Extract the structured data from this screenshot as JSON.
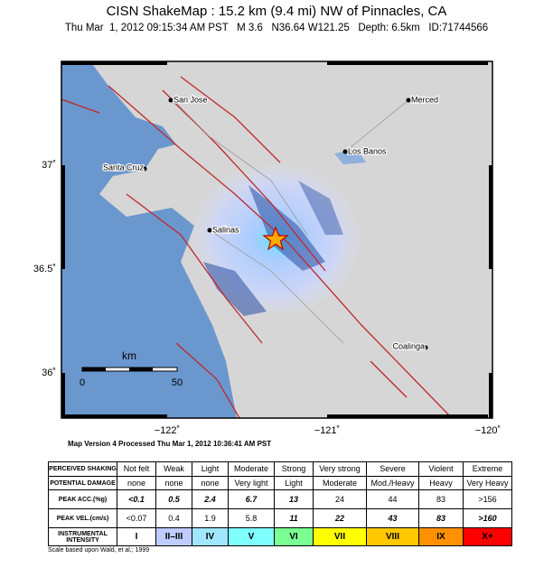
{
  "header": {
    "title": "CISN ShakeMap : 15.2 km (9.4 mi) NW of Pinnacles, CA",
    "subtitle": "Thu Mar  1, 2012 09:15:34 AM PST   M 3.6   N36.64 W121.25   Depth: 6.5km   ID:71744566"
  },
  "map": {
    "cities": [
      "San Jose",
      "Merced",
      "Los Banos",
      "Santa Cruz",
      "Salinas",
      "Coalinga"
    ],
    "lat_labels": [
      "37˚",
      "36.5˚",
      "36˚"
    ],
    "lon_labels": [
      "−122˚",
      "−121˚",
      "−120˚"
    ],
    "scale_bar": {
      "unit": "km",
      "labels": [
        "0",
        "50"
      ]
    }
  },
  "version": "Map Version 4 Processed Thu Mar  1, 2012 10:36:41 AM PST",
  "table": {
    "row_labels": [
      "PERCEIVED SHAKING",
      "POTENTIAL DAMAGE",
      "PEAK ACC.(%g)",
      "PEAK VEL.(cm/s)",
      "INSTRUMENTAL INTENSITY"
    ],
    "rows": [
      [
        "Not felt",
        "Weak",
        "Light",
        "Moderate",
        "Strong",
        "Very strong",
        "Severe",
        "Violent",
        "Extreme"
      ],
      [
        "none",
        "none",
        "none",
        "Very light",
        "Light",
        "Moderate",
        "Mod./Heavy",
        "Heavy",
        "Very Heavy"
      ],
      [
        "<0.1",
        "0.5",
        "2.4",
        "6.7",
        "13",
        "24",
        "44",
        "83",
        ">156"
      ],
      [
        "<0.07",
        "0.4",
        "1.9",
        "5.8",
        "11",
        "22",
        "43",
        "83",
        ">160"
      ],
      [
        "I",
        "II–III",
        "IV",
        "V",
        "VI",
        "VII",
        "VIII",
        "IX",
        "X+"
      ]
    ]
  },
  "footnote": "Scale based upon Wald, et al.; 1999"
}
